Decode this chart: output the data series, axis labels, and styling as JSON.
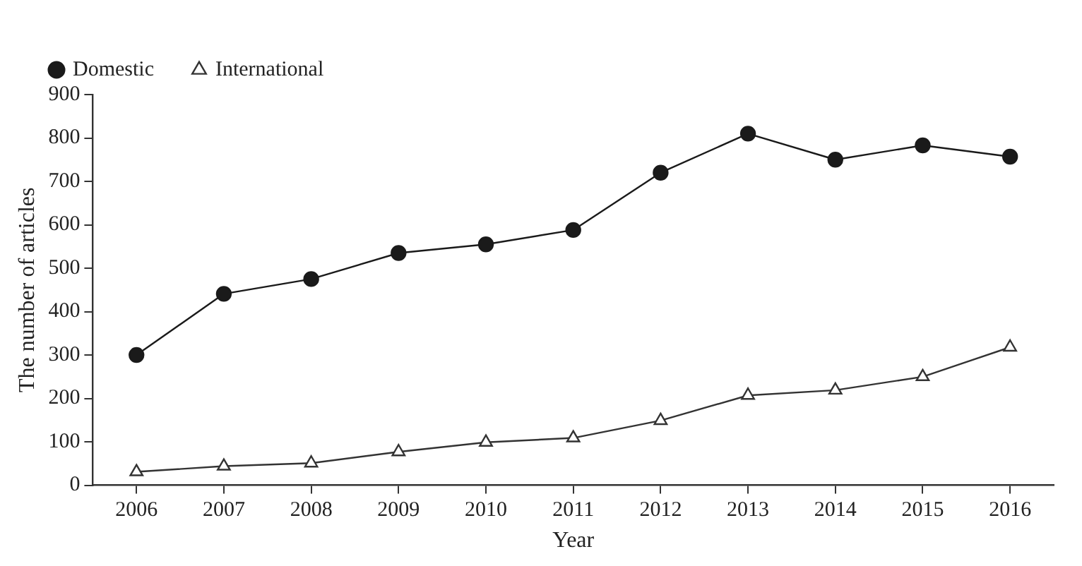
{
  "chart_data": {
    "type": "line",
    "xlabel": "Year",
    "ylabel": "The number of articles",
    "categories": [
      "2006",
      "2007",
      "2008",
      "2009",
      "2010",
      "2011",
      "2012",
      "2013",
      "2014",
      "2015",
      "2016"
    ],
    "series": [
      {
        "name": "Domestic",
        "color": "#1a1a1a",
        "marker": "circle",
        "values": [
          300,
          441,
          475,
          535,
          555,
          588,
          720,
          810,
          750,
          783,
          757
        ]
      },
      {
        "name": "International",
        "color": "#333333",
        "marker": "triangle",
        "values": [
          31,
          44,
          51,
          77,
          99,
          109,
          149,
          207,
          219,
          250,
          318
        ]
      }
    ],
    "ylim": [
      0,
      900
    ],
    "yticks": [
      0,
      100,
      200,
      300,
      400,
      500,
      600,
      700,
      800,
      900
    ],
    "legend": "top left",
    "line_style": "solid"
  }
}
